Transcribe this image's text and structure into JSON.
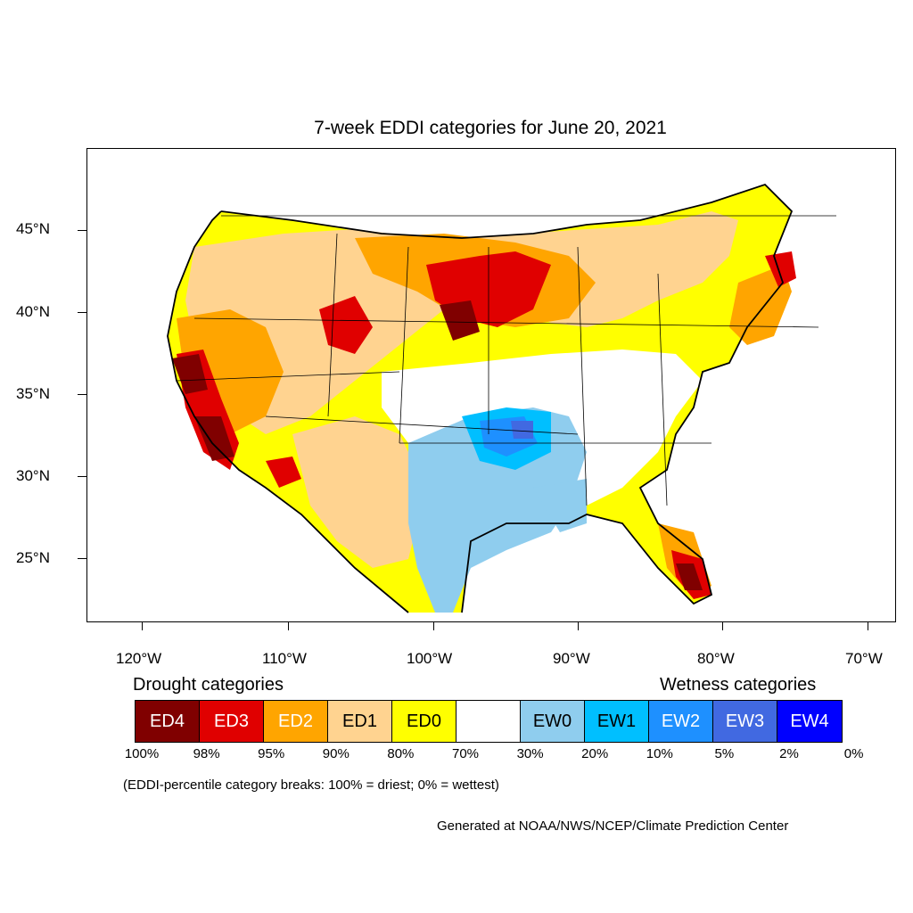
{
  "title": "7-week EDDI categories for June 20, 2021",
  "latitude_labels": [
    "45°N",
    "40°N",
    "35°N",
    "30°N",
    "25°N"
  ],
  "longitude_labels": [
    "120°W",
    "110°W",
    "100°W",
    "90°W",
    "80°W",
    "70°W"
  ],
  "legend": {
    "drought_heading": "Drought categories",
    "wetness_heading": "Wetness categories",
    "categories": [
      {
        "label": "ED4",
        "color": "#800000",
        "text_color": "#ffffff"
      },
      {
        "label": "ED3",
        "color": "#e00000",
        "text_color": "#ffffff"
      },
      {
        "label": "ED2",
        "color": "#ffa500",
        "text_color": "#ffffff"
      },
      {
        "label": "ED1",
        "color": "#ffd390",
        "text_color": "#000000"
      },
      {
        "label": "ED0",
        "color": "#ffff00",
        "text_color": "#000000"
      },
      {
        "label": "",
        "color": "#ffffff",
        "text_color": "#000000"
      },
      {
        "label": "EW0",
        "color": "#8fcdee",
        "text_color": "#000000"
      },
      {
        "label": "EW1",
        "color": "#00bfff",
        "text_color": "#000000"
      },
      {
        "label": "EW2",
        "color": "#1e90ff",
        "text_color": "#ffffff"
      },
      {
        "label": "EW3",
        "color": "#4169e1",
        "text_color": "#ffffff"
      },
      {
        "label": "EW4",
        "color": "#0000ff",
        "text_color": "#ffffff"
      }
    ],
    "percent_breaks": [
      "100%",
      "98%",
      "95%",
      "90%",
      "80%",
      "70%",
      "30%",
      "20%",
      "10%",
      "5%",
      "2%",
      "0%"
    ]
  },
  "note": "(EDDI-percentile category breaks: 100% = driest; 0% = wettest)",
  "credit": "Generated at NOAA/NWS/NCEP/Climate Prediction Center"
}
